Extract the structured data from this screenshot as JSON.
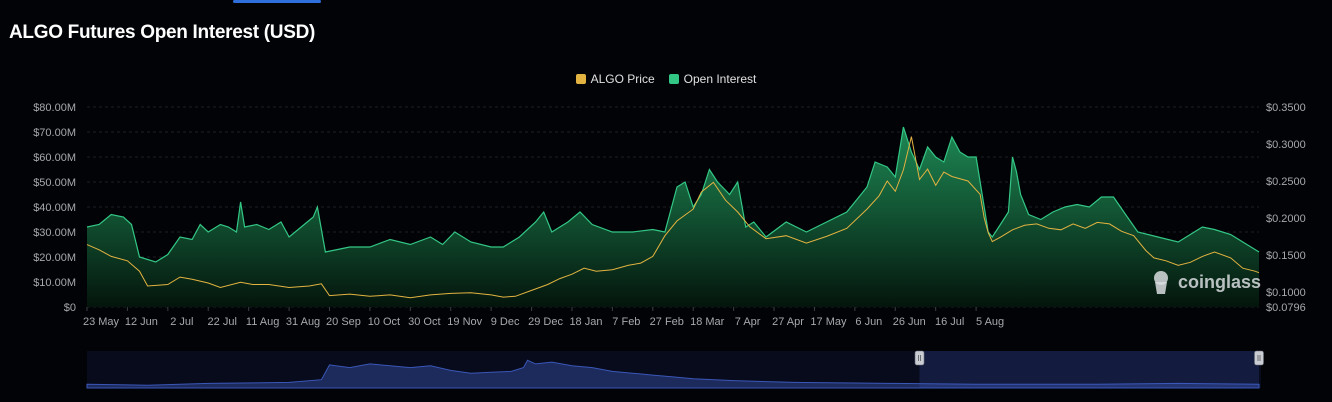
{
  "title": "ALGO Futures Open Interest (USD)",
  "watermark": "coinglass",
  "colors": {
    "price": "#e3b341",
    "oi_line": "#33c785",
    "oi_fill_top": "#1f8f58",
    "oi_fill_bottom": "#04150c",
    "accent": "#2f6fdb"
  },
  "chart_data": {
    "type": "area",
    "title": "ALGO Futures Open Interest (USD)",
    "legend": [
      {
        "name": "ALGO Price",
        "color": "#e3b341"
      },
      {
        "name": "Open Interest",
        "color": "#33c785"
      }
    ],
    "legend_position": "top-center",
    "grid": true,
    "x_ticks": [
      "23 May",
      "12 Jun",
      "2 Jul",
      "22 Jul",
      "11 Aug",
      "31 Aug",
      "20 Sep",
      "10 Oct",
      "30 Oct",
      "19 Nov",
      "9 Dec",
      "29 Dec",
      "18 Jan",
      "7 Feb",
      "27 Feb",
      "18 Mar",
      "7 Apr",
      "27 Apr",
      "17 May",
      "6 Jun",
      "26 Jun",
      "16 Jul",
      "5 Aug"
    ],
    "y_left_ticks": [
      "$0",
      "$10.00M",
      "$20.00M",
      "$30.00M",
      "$40.00M",
      "$50.00M",
      "$60.00M",
      "$70.00M",
      "$80.00M"
    ],
    "y_right_ticks": [
      "$0.0796",
      "$0.1000",
      "$0.1500",
      "$0.2000",
      "$0.2500",
      "$0.3000",
      "$0.3500"
    ],
    "ylim_left": [
      0,
      80
    ],
    "ylim_right": [
      0.0796,
      0.35
    ],
    "x_unit": "days since 23 May",
    "series": [
      {
        "name": "Open Interest",
        "axis": "left",
        "unit": "USD millions",
        "points": [
          [
            0,
            32
          ],
          [
            6,
            33
          ],
          [
            12,
            37
          ],
          [
            18,
            36
          ],
          [
            22,
            33
          ],
          [
            26,
            20
          ],
          [
            34,
            18
          ],
          [
            40,
            21
          ],
          [
            46,
            28
          ],
          [
            52,
            27
          ],
          [
            56,
            33
          ],
          [
            60,
            30
          ],
          [
            66,
            33
          ],
          [
            70,
            32
          ],
          [
            74,
            30
          ],
          [
            76,
            42
          ],
          [
            78,
            32
          ],
          [
            84,
            33
          ],
          [
            90,
            31
          ],
          [
            96,
            34
          ],
          [
            100,
            28
          ],
          [
            106,
            32
          ],
          [
            112,
            36
          ],
          [
            114,
            40
          ],
          [
            118,
            22
          ],
          [
            130,
            24
          ],
          [
            140,
            24
          ],
          [
            150,
            27
          ],
          [
            160,
            25
          ],
          [
            170,
            28
          ],
          [
            176,
            25
          ],
          [
            182,
            30
          ],
          [
            190,
            26
          ],
          [
            200,
            24
          ],
          [
            206,
            24
          ],
          [
            214,
            28
          ],
          [
            222,
            34
          ],
          [
            226,
            38
          ],
          [
            230,
            30
          ],
          [
            238,
            34
          ],
          [
            244,
            38
          ],
          [
            250,
            33
          ],
          [
            260,
            30
          ],
          [
            270,
            30
          ],
          [
            280,
            31
          ],
          [
            286,
            30
          ],
          [
            292,
            48
          ],
          [
            296,
            50
          ],
          [
            300,
            40
          ],
          [
            304,
            45
          ],
          [
            308,
            55
          ],
          [
            312,
            50
          ],
          [
            318,
            45
          ],
          [
            322,
            50
          ],
          [
            326,
            32
          ],
          [
            330,
            34
          ],
          [
            336,
            28
          ],
          [
            346,
            34
          ],
          [
            356,
            30
          ],
          [
            366,
            34
          ],
          [
            376,
            38
          ],
          [
            386,
            48
          ],
          [
            390,
            58
          ],
          [
            396,
            56
          ],
          [
            400,
            52
          ],
          [
            404,
            72
          ],
          [
            408,
            62
          ],
          [
            412,
            55
          ],
          [
            416,
            64
          ],
          [
            420,
            60
          ],
          [
            424,
            58
          ],
          [
            428,
            68
          ],
          [
            432,
            62
          ],
          [
            436,
            60
          ],
          [
            440,
            60
          ],
          [
            444,
            40
          ],
          [
            446,
            30
          ],
          [
            448,
            28
          ],
          [
            452,
            33
          ],
          [
            456,
            38
          ],
          [
            458,
            60
          ],
          [
            460,
            54
          ],
          [
            462,
            45
          ],
          [
            466,
            37
          ],
          [
            472,
            35
          ],
          [
            478,
            38
          ],
          [
            484,
            40
          ],
          [
            490,
            41
          ],
          [
            496,
            40
          ],
          [
            502,
            44
          ],
          [
            508,
            44
          ],
          [
            514,
            37
          ],
          [
            520,
            30
          ],
          [
            530,
            28
          ],
          [
            540,
            26
          ],
          [
            546,
            29
          ],
          [
            552,
            32
          ],
          [
            558,
            31
          ],
          [
            566,
            29
          ],
          [
            572,
            26
          ],
          [
            578,
            23
          ],
          [
            580,
            22
          ]
        ]
      },
      {
        "name": "ALGO Price",
        "axis": "right",
        "unit": "USD",
        "points": [
          [
            0,
            0.164
          ],
          [
            6,
            0.157
          ],
          [
            12,
            0.148
          ],
          [
            20,
            0.142
          ],
          [
            26,
            0.128
          ],
          [
            30,
            0.108
          ],
          [
            40,
            0.11
          ],
          [
            46,
            0.12
          ],
          [
            52,
            0.117
          ],
          [
            60,
            0.112
          ],
          [
            66,
            0.106
          ],
          [
            76,
            0.113
          ],
          [
            82,
            0.11
          ],
          [
            90,
            0.11
          ],
          [
            100,
            0.106
          ],
          [
            110,
            0.108
          ],
          [
            116,
            0.111
          ],
          [
            120,
            0.095
          ],
          [
            130,
            0.097
          ],
          [
            140,
            0.094
          ],
          [
            150,
            0.096
          ],
          [
            160,
            0.092
          ],
          [
            170,
            0.096
          ],
          [
            180,
            0.098
          ],
          [
            190,
            0.099
          ],
          [
            200,
            0.096
          ],
          [
            206,
            0.093
          ],
          [
            212,
            0.094
          ],
          [
            220,
            0.102
          ],
          [
            228,
            0.11
          ],
          [
            234,
            0.118
          ],
          [
            240,
            0.124
          ],
          [
            246,
            0.132
          ],
          [
            252,
            0.128
          ],
          [
            260,
            0.13
          ],
          [
            268,
            0.136
          ],
          [
            274,
            0.139
          ],
          [
            280,
            0.148
          ],
          [
            286,
            0.176
          ],
          [
            292,
            0.196
          ],
          [
            296,
            0.204
          ],
          [
            300,
            0.212
          ],
          [
            304,
            0.235
          ],
          [
            310,
            0.248
          ],
          [
            316,
            0.224
          ],
          [
            322,
            0.208
          ],
          [
            328,
            0.188
          ],
          [
            336,
            0.172
          ],
          [
            346,
            0.176
          ],
          [
            356,
            0.166
          ],
          [
            366,
            0.175
          ],
          [
            376,
            0.186
          ],
          [
            386,
            0.212
          ],
          [
            392,
            0.23
          ],
          [
            396,
            0.25
          ],
          [
            400,
            0.236
          ],
          [
            404,
            0.265
          ],
          [
            408,
            0.31
          ],
          [
            412,
            0.252
          ],
          [
            416,
            0.266
          ],
          [
            420,
            0.244
          ],
          [
            424,
            0.262
          ],
          [
            428,
            0.256
          ],
          [
            436,
            0.25
          ],
          [
            442,
            0.232
          ],
          [
            444,
            0.2
          ],
          [
            446,
            0.18
          ],
          [
            448,
            0.168
          ],
          [
            452,
            0.174
          ],
          [
            458,
            0.184
          ],
          [
            464,
            0.19
          ],
          [
            470,
            0.192
          ],
          [
            476,
            0.186
          ],
          [
            482,
            0.184
          ],
          [
            488,
            0.192
          ],
          [
            494,
            0.186
          ],
          [
            500,
            0.194
          ],
          [
            506,
            0.192
          ],
          [
            512,
            0.182
          ],
          [
            518,
            0.176
          ],
          [
            524,
            0.156
          ],
          [
            528,
            0.146
          ],
          [
            534,
            0.142
          ],
          [
            540,
            0.136
          ],
          [
            546,
            0.14
          ],
          [
            552,
            0.148
          ],
          [
            558,
            0.154
          ],
          [
            566,
            0.146
          ],
          [
            572,
            0.132
          ],
          [
            578,
            0.128
          ],
          [
            580,
            0.126
          ]
        ]
      }
    ],
    "navigator": {
      "points": [
        [
          0,
          4
        ],
        [
          30,
          3
        ],
        [
          60,
          5
        ],
        [
          100,
          6
        ],
        [
          116,
          9
        ],
        [
          120,
          25
        ],
        [
          130,
          22
        ],
        [
          140,
          26
        ],
        [
          150,
          24
        ],
        [
          160,
          22
        ],
        [
          170,
          24
        ],
        [
          180,
          19
        ],
        [
          190,
          16
        ],
        [
          200,
          17
        ],
        [
          210,
          18
        ],
        [
          216,
          22
        ],
        [
          218,
          30
        ],
        [
          222,
          26
        ],
        [
          230,
          28
        ],
        [
          240,
          24
        ],
        [
          250,
          22
        ],
        [
          260,
          18
        ],
        [
          270,
          16
        ],
        [
          280,
          14
        ],
        [
          290,
          12
        ],
        [
          300,
          10
        ],
        [
          320,
          8
        ],
        [
          350,
          6
        ],
        [
          400,
          5
        ],
        [
          440,
          4
        ],
        [
          500,
          4
        ],
        [
          540,
          5
        ],
        [
          580,
          4
        ]
      ],
      "selected_from": 412,
      "selected_to": 580
    }
  }
}
